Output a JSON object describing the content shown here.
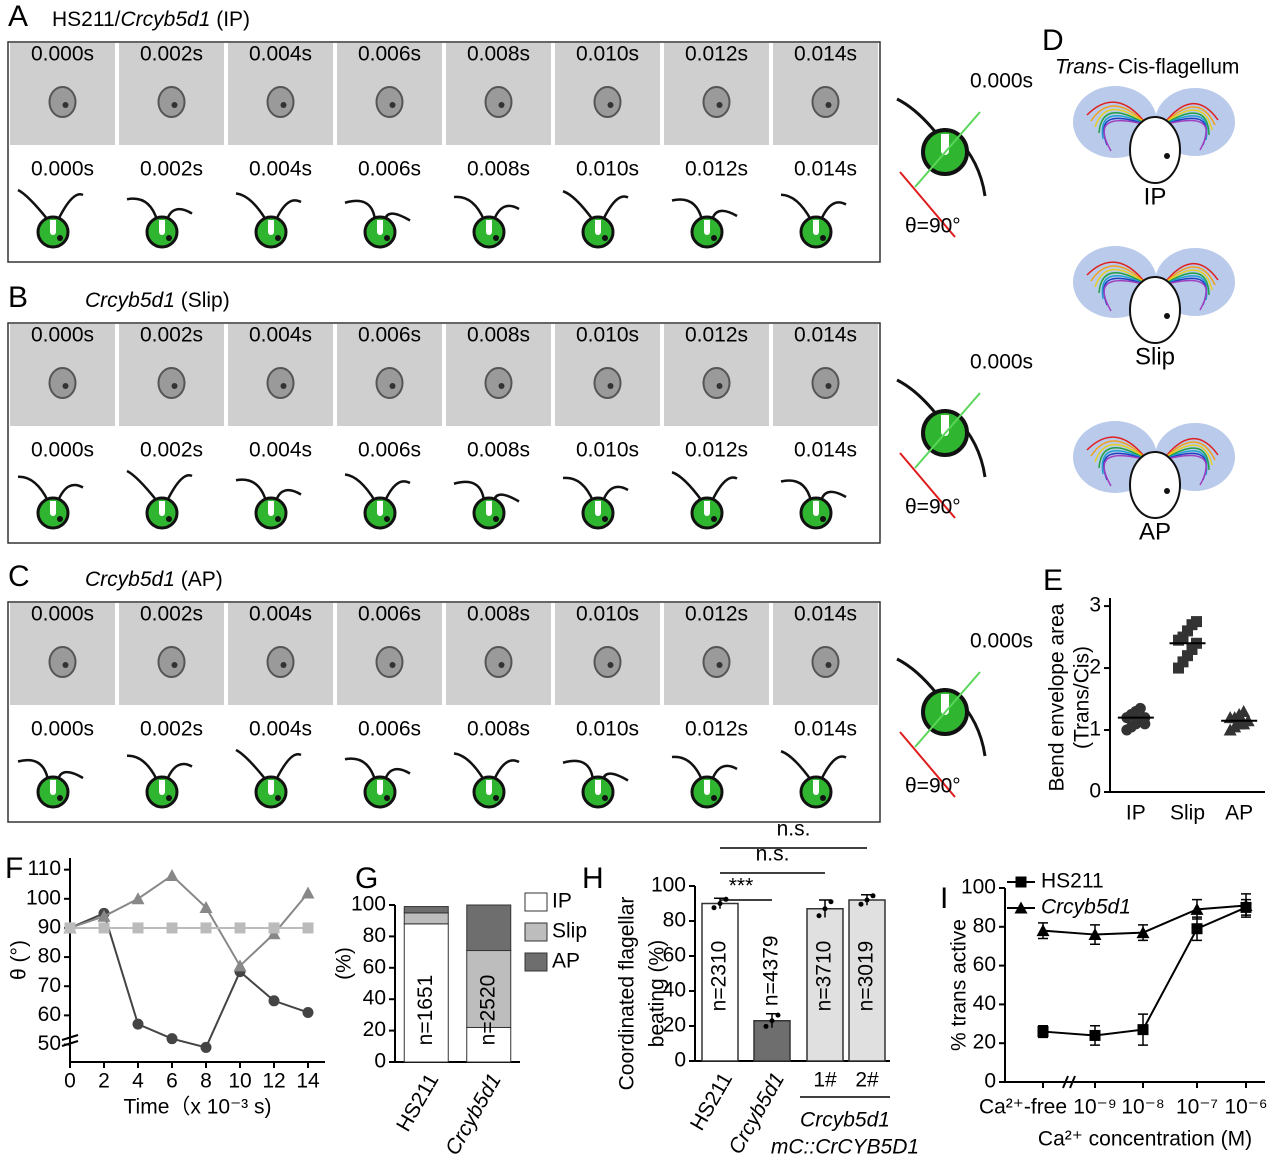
{
  "figure": {
    "rows": [
      {
        "letter": "A",
        "title": {
          "plain": "HS211/",
          "italic": "Crcyb5d1",
          "tail": " (IP)"
        }
      },
      {
        "letter": "B",
        "title": {
          "italic": "Crcyb5d1",
          "tail": " (Slip)"
        }
      },
      {
        "letter": "C",
        "title": {
          "italic": "Crcyb5d1",
          "tail": " (AP)"
        }
      }
    ],
    "times": [
      "0.000s",
      "0.002s",
      "0.004s",
      "0.006s",
      "0.008s",
      "0.010s",
      "0.012s",
      "0.014s"
    ],
    "angle": "θ=90°",
    "D": {
      "letter": "D",
      "trans": "Trans-",
      "cis": "Cis-flagellum",
      "labels": [
        "IP",
        "Slip",
        "AP"
      ]
    }
  },
  "chart_data": [
    {
      "type": "dot",
      "label": "E",
      "ylabel": [
        "Bend envelope area",
        "(Trans/Cis)"
      ],
      "categories": [
        "IP",
        "Slip",
        "AP"
      ],
      "color": "#333333",
      "markers": [
        "circle",
        "square",
        "triangle"
      ],
      "values": [
        [
          1.0,
          1.05,
          1.1,
          1.15,
          1.2,
          1.2,
          1.25,
          1.3,
          1.35,
          1.1
        ],
        [
          2.0,
          2.1,
          2.2,
          2.3,
          2.4,
          2.45,
          2.5,
          2.6,
          2.7,
          2.75
        ],
        [
          1.0,
          1.05,
          1.1,
          1.1,
          1.15,
          1.2,
          1.2,
          1.25,
          1.3
        ]
      ],
      "means": [
        1.2,
        2.4,
        1.15
      ],
      "ylim": [
        0,
        3.05
      ],
      "yticks": [
        0,
        1,
        2,
        3
      ]
    },
    {
      "type": "line",
      "label": "F",
      "ylabel": "θ (°)",
      "xlabel": "Time（x 10⁻³ s)",
      "x": [
        0,
        2,
        4,
        6,
        8,
        10,
        12,
        14
      ],
      "series": [
        {
          "color": "#444444",
          "marker": "circle",
          "values": [
            90,
            95,
            57,
            52,
            49,
            75,
            65,
            61
          ]
        },
        {
          "color": "#888888",
          "marker": "triangle",
          "values": [
            90,
            94,
            100,
            108,
            97,
            77,
            88,
            102
          ]
        },
        {
          "color": "#bbbbbb",
          "marker": "square",
          "values": [
            90,
            90,
            90,
            90,
            90,
            90,
            90,
            90
          ]
        }
      ],
      "xlim": [
        0,
        15
      ],
      "xticks": [
        0,
        2,
        4,
        6,
        8,
        10,
        12,
        14
      ],
      "ylim": [
        44,
        114
      ],
      "yticks": [
        50,
        60,
        70,
        80,
        90,
        100,
        110
      ],
      "axis_break": true
    },
    {
      "type": "stacked_bar",
      "label": "G",
      "ylabel": "(%)",
      "categories": [
        "HS211",
        "Crcyb5d1"
      ],
      "n_labels": [
        "n=1651",
        "n=2520"
      ],
      "series": [
        {
          "name": "IP",
          "color": "#ffffff",
          "values": [
            88,
            22
          ]
        },
        {
          "name": "Slip",
          "color": "#bdbdbd",
          "values": [
            7,
            49
          ]
        },
        {
          "name": "AP",
          "color": "#6e6e6e",
          "values": [
            4,
            29
          ]
        }
      ],
      "ylim": [
        0,
        100
      ],
      "yticks": [
        0,
        20,
        40,
        60,
        80,
        100
      ]
    },
    {
      "type": "bar",
      "label": "H",
      "ylabel": [
        "Coordinated flagellar",
        "beating (%)"
      ],
      "categories": [
        "HS211",
        "Crcyb5d1",
        "1#",
        "2#"
      ],
      "group_label": [
        "Crcyb5d1",
        "mC::CrCYB5D1"
      ],
      "values": [
        90,
        23,
        87,
        92
      ],
      "errors": [
        3,
        4,
        5,
        3
      ],
      "colors": [
        "#ffffff",
        "#6e6e6e",
        "#e0e0e0",
        "#e0e0e0"
      ],
      "n_labels": [
        "n=2310",
        "n=4379",
        "n=3710",
        "n=3019"
      ],
      "annotations": [
        "n.s.",
        "n.s.",
        "***"
      ],
      "ylim": [
        0,
        100
      ],
      "yticks": [
        0,
        20,
        40,
        60,
        80,
        100
      ]
    },
    {
      "type": "line",
      "label": "I",
      "ylabel": "% trans active",
      "xlabel": "Ca²⁺ concentration (M)",
      "categories": [
        "Ca²⁺-free",
        "10⁻⁹",
        "10⁻⁸",
        "10⁻⁷",
        "10⁻⁶"
      ],
      "series": [
        {
          "name": "HS211",
          "color": "#000000",
          "marker": "square",
          "values": [
            26,
            24,
            27,
            79,
            90
          ],
          "errors": [
            3,
            5,
            8,
            6,
            4
          ]
        },
        {
          "name": "Crcyb5d1",
          "color": "#000000",
          "marker": "triangle",
          "values": [
            78,
            76,
            77,
            89,
            91
          ],
          "errors": [
            4,
            5,
            4,
            5,
            6
          ]
        }
      ],
      "ylim": [
        0,
        100
      ],
      "yticks": [
        0,
        20,
        40,
        60,
        80,
        100
      ],
      "legend": "upper left"
    }
  ]
}
